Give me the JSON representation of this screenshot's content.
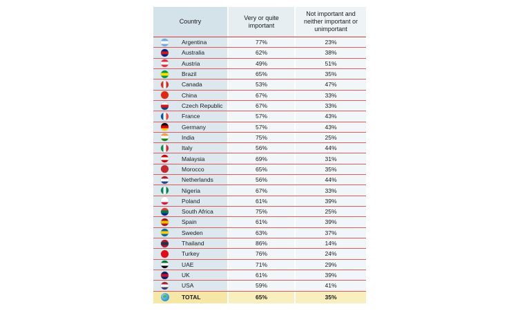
{
  "chart_data": {
    "type": "table",
    "columns": [
      "Country",
      "Very or quite important",
      "Not important and neither important or unimportant"
    ],
    "rows": [
      {
        "country": "Argentina",
        "important": "77%",
        "not_important": "23%",
        "flag": "argentina-flag-icon",
        "colors": [
          "#74acdf",
          "#ffffff",
          "#74acdf"
        ],
        "dir": "h"
      },
      {
        "country": "Australia",
        "important": "62%",
        "not_important": "38%",
        "flag": "australia-flag-icon",
        "colors": [
          "#00247d",
          "#cf142b",
          "#00247d"
        ],
        "dir": "h"
      },
      {
        "country": "Austria",
        "important": "49%",
        "not_important": "51%",
        "flag": "austria-flag-icon",
        "colors": [
          "#ed2939",
          "#ffffff",
          "#ed2939"
        ],
        "dir": "h"
      },
      {
        "country": "Brazil",
        "important": "65%",
        "not_important": "35%",
        "flag": "brazil-flag-icon",
        "colors": [
          "#009c3b",
          "#ffdf00",
          "#009c3b"
        ],
        "dir": "h"
      },
      {
        "country": "Canada",
        "important": "53%",
        "not_important": "47%",
        "flag": "canada-flag-icon",
        "colors": [
          "#d52b1e",
          "#ffffff",
          "#d52b1e"
        ],
        "dir": "v"
      },
      {
        "country": "China",
        "important": "67%",
        "not_important": "33%",
        "flag": "china-flag-icon",
        "colors": [
          "#de2910",
          "#de2910",
          "#de2910"
        ],
        "dir": "h"
      },
      {
        "country": "Czech Republic",
        "important": "67%",
        "not_important": "33%",
        "flag": "czech-flag-icon",
        "colors": [
          "#ffffff",
          "#d7141a",
          "#11457e"
        ],
        "dir": "h"
      },
      {
        "country": "France",
        "important": "57%",
        "not_important": "43%",
        "flag": "france-flag-icon",
        "colors": [
          "#0055a4",
          "#ffffff",
          "#ef4135"
        ],
        "dir": "v"
      },
      {
        "country": "Germany",
        "important": "57%",
        "not_important": "43%",
        "flag": "germany-flag-icon",
        "colors": [
          "#000000",
          "#dd0000",
          "#ffce00"
        ],
        "dir": "h"
      },
      {
        "country": "India",
        "important": "75%",
        "not_important": "25%",
        "flag": "india-flag-icon",
        "colors": [
          "#ff9933",
          "#ffffff",
          "#138808"
        ],
        "dir": "h"
      },
      {
        "country": "Italy",
        "important": "56%",
        "not_important": "44%",
        "flag": "italy-flag-icon",
        "colors": [
          "#009246",
          "#ffffff",
          "#ce2b37"
        ],
        "dir": "v"
      },
      {
        "country": "Malaysia",
        "important": "69%",
        "not_important": "31%",
        "flag": "malaysia-flag-icon",
        "colors": [
          "#cc0001",
          "#ffffff",
          "#cc0001"
        ],
        "dir": "h"
      },
      {
        "country": "Morocco",
        "important": "65%",
        "not_important": "35%",
        "flag": "morocco-flag-icon",
        "colors": [
          "#c1272d",
          "#c1272d",
          "#c1272d"
        ],
        "dir": "h"
      },
      {
        "country": "Netherlands",
        "important": "56%",
        "not_important": "44%",
        "flag": "netherlands-flag-icon",
        "colors": [
          "#ae1c28",
          "#ffffff",
          "#21468b"
        ],
        "dir": "h"
      },
      {
        "country": "Nigeria",
        "important": "67%",
        "not_important": "33%",
        "flag": "nigeria-flag-icon",
        "colors": [
          "#008751",
          "#ffffff",
          "#008751"
        ],
        "dir": "v"
      },
      {
        "country": "Poland",
        "important": "61%",
        "not_important": "39%",
        "flag": "poland-flag-icon",
        "colors": [
          "#ffffff",
          "#ffffff",
          "#dc143c"
        ],
        "dir": "h"
      },
      {
        "country": "South Africa",
        "important": "75%",
        "not_important": "25%",
        "flag": "south-africa-flag-icon",
        "colors": [
          "#de3831",
          "#007a4d",
          "#002395"
        ],
        "dir": "h"
      },
      {
        "country": "Spain",
        "important": "61%",
        "not_important": "39%",
        "flag": "spain-flag-icon",
        "colors": [
          "#aa151b",
          "#f1bf00",
          "#aa151b"
        ],
        "dir": "h"
      },
      {
        "country": "Sweden",
        "important": "63%",
        "not_important": "37%",
        "flag": "sweden-flag-icon",
        "colors": [
          "#006aa7",
          "#fecc00",
          "#006aa7"
        ],
        "dir": "h"
      },
      {
        "country": "Thailand",
        "important": "86%",
        "not_important": "14%",
        "flag": "thailand-flag-icon",
        "colors": [
          "#a51931",
          "#2d2a4a",
          "#a51931"
        ],
        "dir": "h"
      },
      {
        "country": "Turkey",
        "important": "76%",
        "not_important": "24%",
        "flag": "turkey-flag-icon",
        "colors": [
          "#e30a17",
          "#e30a17",
          "#e30a17"
        ],
        "dir": "h"
      },
      {
        "country": "UAE",
        "important": "71%",
        "not_important": "29%",
        "flag": "uae-flag-icon",
        "colors": [
          "#00732f",
          "#ffffff",
          "#000000"
        ],
        "dir": "h"
      },
      {
        "country": "UK",
        "important": "61%",
        "not_important": "39%",
        "flag": "uk-flag-icon",
        "colors": [
          "#012169",
          "#c8102e",
          "#012169"
        ],
        "dir": "h"
      },
      {
        "country": "USA",
        "important": "59%",
        "not_important": "41%",
        "flag": "usa-flag-icon",
        "colors": [
          "#b22234",
          "#ffffff",
          "#3c3b6e"
        ],
        "dir": "h"
      }
    ],
    "total": {
      "label": "TOTAL",
      "important": "65%",
      "not_important": "35%"
    }
  },
  "header": {
    "country": "Country",
    "important": "Very or quite important",
    "not_important": "Not important and neither important or unimportant"
  }
}
